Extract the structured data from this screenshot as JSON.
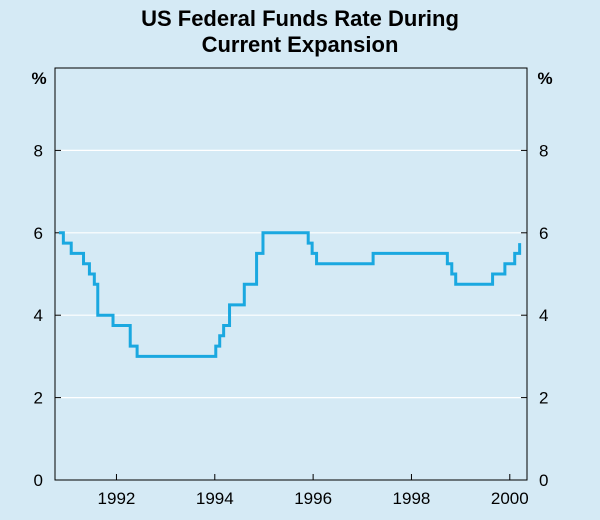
{
  "chart_data": {
    "type": "line",
    "title_lines": [
      "US Federal Funds Rate During",
      "Current Expansion"
    ],
    "ylabel_left": "%",
    "ylabel_right": "%",
    "ylim": [
      0,
      10
    ],
    "yticks": [
      0,
      2,
      4,
      6,
      8
    ],
    "xlim": [
      1990.75,
      2000.35
    ],
    "xticks": [
      1992,
      1994,
      1996,
      1998,
      2000
    ],
    "xtick_labels": [
      "1992",
      "1994",
      "1996",
      "1998",
      "2000"
    ],
    "grid": true,
    "line_color": "#1aa8e0",
    "series": [
      {
        "name": "Federal funds rate",
        "step": true,
        "x": [
          1990.83,
          1990.92,
          1991.0,
          1991.08,
          1991.33,
          1991.4,
          1991.45,
          1991.55,
          1991.62,
          1991.93,
          1992.28,
          1992.42,
          1992.52,
          1993.5,
          1994.02,
          1994.1,
          1994.18,
          1994.3,
          1994.6,
          1994.85,
          1994.98,
          1995.5,
          1995.9,
          1995.98,
          1996.07,
          1997.22,
          1998.73,
          1998.82,
          1998.9,
          1999.5,
          1999.65,
          1999.9,
          2000.1,
          2000.2
        ],
        "values": [
          6.0,
          5.75,
          5.75,
          5.5,
          5.25,
          5.25,
          5.0,
          4.75,
          4.0,
          3.75,
          3.25,
          3.0,
          3.0,
          3.0,
          3.25,
          3.5,
          3.75,
          4.25,
          4.75,
          5.5,
          6.0,
          6.0,
          5.75,
          5.5,
          5.25,
          5.5,
          5.25,
          5.0,
          4.75,
          4.75,
          5.0,
          5.25,
          5.5,
          5.75
        ]
      }
    ]
  }
}
